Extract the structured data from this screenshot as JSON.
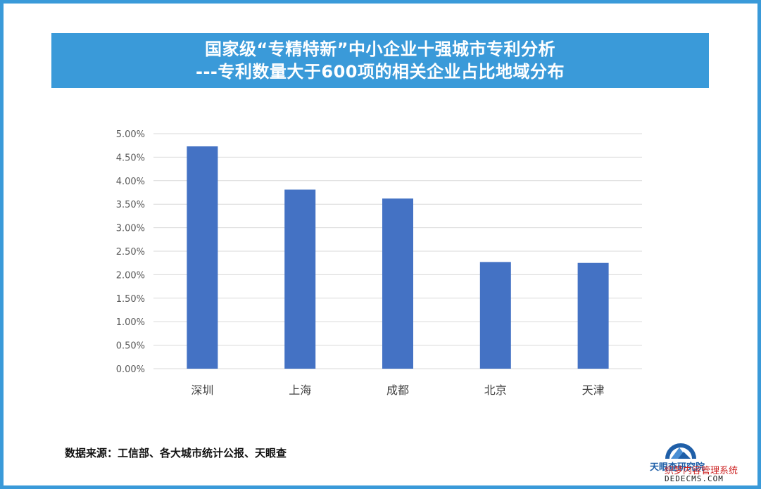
{
  "title": {
    "line1": "国家级“专精特新”中小企业十强城市专利分析",
    "line2": "---专利数量大于600项的相关企业占比地域分布"
  },
  "chart_data": {
    "type": "bar",
    "categories": [
      "深圳",
      "上海",
      "成都",
      "北京",
      "天津"
    ],
    "values": [
      4.73,
      3.81,
      3.62,
      2.27,
      2.25
    ],
    "ylim": [
      0,
      5
    ],
    "yticks": [
      "0.00%",
      "0.50%",
      "1.00%",
      "1.50%",
      "2.00%",
      "2.50%",
      "3.00%",
      "3.50%",
      "4.00%",
      "4.50%",
      "5.00%"
    ],
    "grid": true,
    "bar_color": "#4472c4"
  },
  "source": "数据来源：工信部、各大城市统计公报、天眼查",
  "logo": {
    "text": "天眼查研究院"
  },
  "watermark": {
    "line1": "织梦内容管理系统",
    "line2": "DEDECMS.COM"
  },
  "colors": {
    "accent": "#3a9ad9",
    "bar": "#4472c4"
  }
}
